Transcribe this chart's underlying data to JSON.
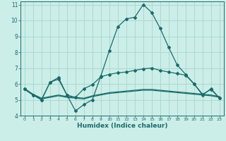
{
  "xlabel": "Humidex (Indice chaleur)",
  "bg_color": "#cceee8",
  "grid_color": "#aad8d0",
  "line_color": "#1a6b6b",
  "xlim": [
    -0.5,
    23.5
  ],
  "ylim": [
    4,
    11.2
  ],
  "yticks": [
    4,
    5,
    6,
    7,
    8,
    9,
    10,
    11
  ],
  "xticks": [
    0,
    1,
    2,
    3,
    4,
    5,
    6,
    7,
    8,
    9,
    10,
    11,
    12,
    13,
    14,
    15,
    16,
    17,
    18,
    19,
    20,
    21,
    22,
    23
  ],
  "lines_with_markers": [
    [
      5.7,
      5.3,
      5.0,
      6.1,
      6.4,
      5.3,
      4.3,
      4.7,
      5.0,
      6.5,
      8.1,
      9.6,
      10.1,
      10.2,
      11.0,
      10.5,
      9.5,
      8.3,
      7.2,
      6.6,
      6.0,
      5.3,
      5.7,
      5.1
    ],
    [
      5.7,
      5.3,
      5.0,
      6.1,
      6.3,
      5.3,
      5.15,
      5.7,
      5.95,
      6.45,
      6.6,
      6.7,
      6.75,
      6.85,
      6.95,
      7.0,
      6.85,
      6.75,
      6.65,
      6.55,
      6.0,
      5.35,
      5.65,
      5.1
    ]
  ],
  "lines_plain": [
    [
      5.7,
      5.35,
      5.1,
      5.2,
      5.3,
      5.2,
      5.15,
      5.1,
      5.25,
      5.35,
      5.45,
      5.5,
      5.55,
      5.6,
      5.65,
      5.65,
      5.6,
      5.55,
      5.5,
      5.45,
      5.4,
      5.35,
      5.3,
      5.2
    ],
    [
      5.65,
      5.3,
      5.05,
      5.15,
      5.25,
      5.15,
      5.1,
      5.05,
      5.2,
      5.3,
      5.4,
      5.45,
      5.5,
      5.55,
      5.6,
      5.6,
      5.55,
      5.5,
      5.45,
      5.4,
      5.35,
      5.3,
      5.25,
      5.15
    ]
  ]
}
